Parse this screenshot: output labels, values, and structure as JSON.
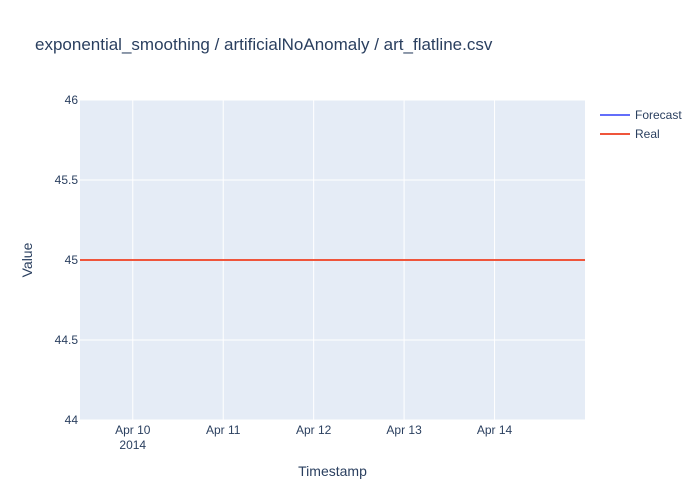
{
  "chart_data": {
    "type": "line",
    "title": "exponential_smoothing / artificialNoAnomaly / art_flatline.csv",
    "xlabel": "Timestamp",
    "ylabel": "Value",
    "xlim": [
      "2014-04-09T10:00",
      "2014-04-15T00:00"
    ],
    "ylim": [
      44,
      46
    ],
    "x_ticks": [
      {
        "date": "2014-04-10",
        "label": "Apr 10",
        "sublabel": "2014"
      },
      {
        "date": "2014-04-11",
        "label": "Apr 11",
        "sublabel": ""
      },
      {
        "date": "2014-04-12",
        "label": "Apr 12",
        "sublabel": ""
      },
      {
        "date": "2014-04-13",
        "label": "Apr 13",
        "sublabel": ""
      },
      {
        "date": "2014-04-14",
        "label": "Apr 14",
        "sublabel": ""
      }
    ],
    "y_ticks": [
      {
        "value": 44,
        "label": "44"
      },
      {
        "value": 44.5,
        "label": "44.5"
      },
      {
        "value": 45,
        "label": "45"
      },
      {
        "value": 45.5,
        "label": "45.5"
      },
      {
        "value": 46,
        "label": "46"
      }
    ],
    "grid": true,
    "legend_position": "top-right",
    "series": [
      {
        "name": "Forecast",
        "color": "#636efa",
        "x": [
          "2014-04-09T10:00",
          "2014-04-15T00:00"
        ],
        "values": [
          45,
          45
        ]
      },
      {
        "name": "Real",
        "color": "#ef553b",
        "x": [
          "2014-04-09T10:00",
          "2014-04-15T00:00"
        ],
        "values": [
          45,
          45
        ]
      }
    ]
  }
}
